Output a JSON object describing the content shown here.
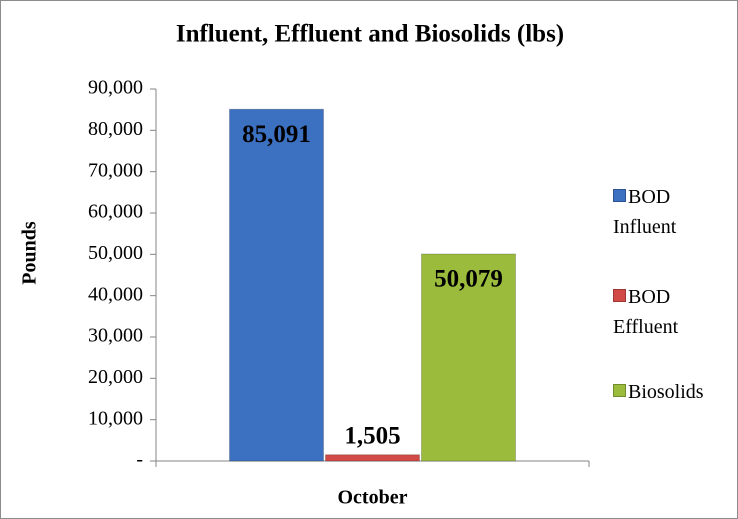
{
  "chart_data": {
    "type": "bar",
    "title": "Influent, Effluent and Biosolids (lbs)",
    "y_label": "Pounds",
    "categories": [
      "October"
    ],
    "series": [
      {
        "name": "BOD Influent",
        "color": "#3c71c2",
        "values": [
          85091
        ],
        "value_labels": [
          "85,091"
        ]
      },
      {
        "name": "BOD Effluent",
        "color": "#d24a46",
        "values": [
          1505
        ],
        "value_labels": [
          "1,505"
        ]
      },
      {
        "name": "Biosolids",
        "color": "#9bbb3c",
        "values": [
          50079
        ],
        "value_labels": [
          "50,079"
        ]
      }
    ],
    "ylim": [
      0,
      90000
    ],
    "yticks": [
      {
        "value": 0,
        "label": "-"
      },
      {
        "value": 10000,
        "label": "10,000"
      },
      {
        "value": 20000,
        "label": "20,000"
      },
      {
        "value": 30000,
        "label": "30,000"
      },
      {
        "value": 40000,
        "label": "40,000"
      },
      {
        "value": 50000,
        "label": "50,000"
      },
      {
        "value": 60000,
        "label": "60,000"
      },
      {
        "value": 70000,
        "label": "70,000"
      },
      {
        "value": 80000,
        "label": "80,000"
      },
      {
        "value": 90000,
        "label": "90,000"
      }
    ],
    "grid": false,
    "legend": "right"
  }
}
